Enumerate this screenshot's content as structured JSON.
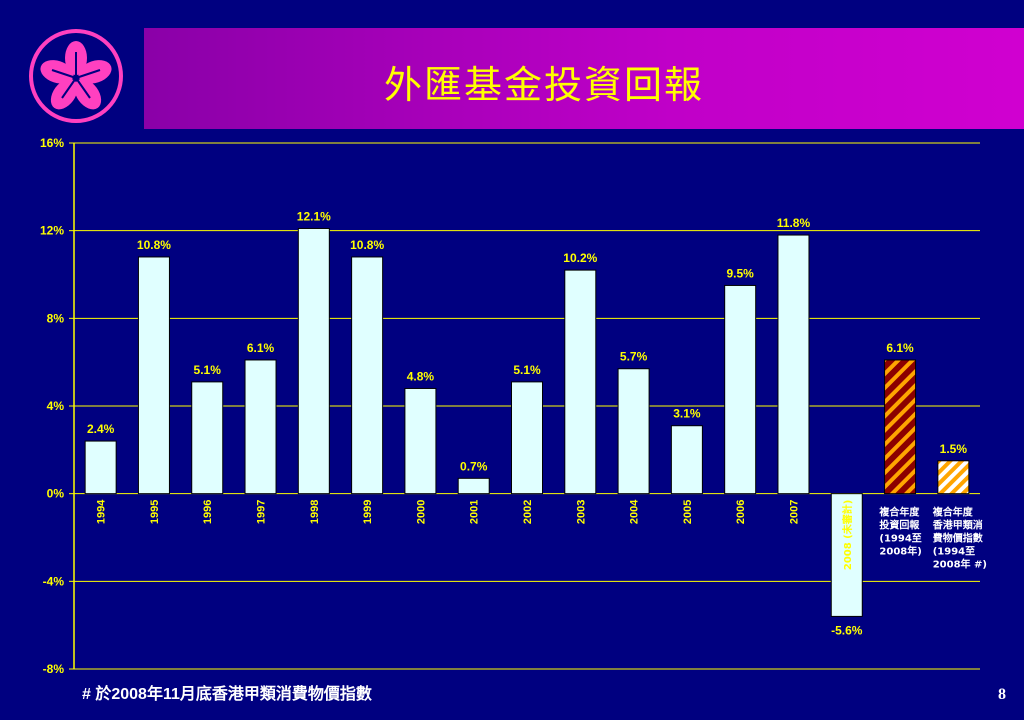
{
  "title": "外匯基金投資回報",
  "footnote": "#  於2008年11月底香港甲類消費物價指數",
  "page_number": "8",
  "colors": {
    "background": "#000080",
    "bar_fill": "#e0ffff",
    "axis": "#ffff00",
    "title_text": "#ffff00",
    "label_text": "#ffff00",
    "hatch_dark": "#8b0000",
    "hatch_light": "#ffa500"
  },
  "chart_data": {
    "type": "bar",
    "categories": [
      "1994",
      "1995",
      "1996",
      "1997",
      "1998",
      "1999",
      "2000",
      "2001",
      "2002",
      "2003",
      "2004",
      "2005",
      "2006",
      "2007",
      "2008 (未審計)",
      "複合年度投資回報 (1994至2008年)",
      "複合年度香港甲類消費物價指數 (1994至2008年 #)"
    ],
    "category_labels": [
      [
        "1994"
      ],
      [
        "1995"
      ],
      [
        "1996"
      ],
      [
        "1997"
      ],
      [
        "1998"
      ],
      [
        "1999"
      ],
      [
        "2000"
      ],
      [
        "2001"
      ],
      [
        "2002"
      ],
      [
        "2003"
      ],
      [
        "2004"
      ],
      [
        "2005"
      ],
      [
        "2006"
      ],
      [
        "2007"
      ],
      [
        "2008 (未審計)"
      ],
      [
        "複合年度",
        "投資回報",
        "(1994至",
        "2008年)"
      ],
      [
        "複合年度",
        "香港甲類消",
        "費物價指數",
        "(1994至",
        "2008年 #)"
      ]
    ],
    "values": [
      2.4,
      10.8,
      5.1,
      6.1,
      12.1,
      10.8,
      4.8,
      0.7,
      5.1,
      10.2,
      5.7,
      3.1,
      9.5,
      11.8,
      -5.6,
      6.1,
      1.5
    ],
    "data_labels": [
      "2.4%",
      "10.8%",
      "5.1%",
      "6.1%",
      "12.1%",
      "10.8%",
      "4.8%",
      "0.7%",
      "5.1%",
      "10.2%",
      "5.7%",
      "3.1%",
      "9.5%",
      "11.8%",
      "-5.6%",
      "6.1%",
      "1.5%"
    ],
    "bar_styles": [
      "solid",
      "solid",
      "solid",
      "solid",
      "solid",
      "solid",
      "solid",
      "solid",
      "solid",
      "solid",
      "solid",
      "solid",
      "solid",
      "solid",
      "solid",
      "hatch-dark",
      "hatch-light"
    ],
    "yticks": [
      16,
      12,
      8,
      4,
      0,
      -4,
      -8
    ],
    "ytick_labels": [
      "16%",
      "12%",
      "8%",
      "4%",
      "0%",
      "-4%",
      "-8%"
    ],
    "ylim": [
      -8,
      16
    ],
    "grid": true
  }
}
